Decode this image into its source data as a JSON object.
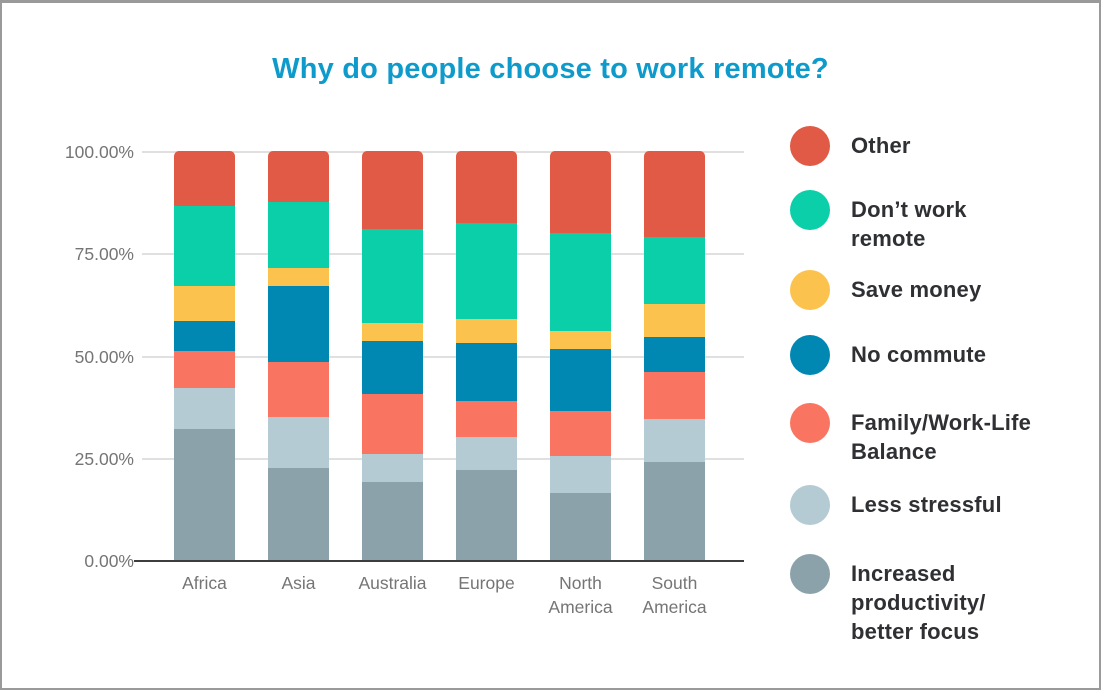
{
  "title": "Why do people choose to work remote?",
  "colors": {
    "title": "#0e9bcb",
    "axis_text": "#757575",
    "legend_text": "#2f3033",
    "gridline": "#e0e0e0",
    "baseline": "#3d3d3d",
    "background": "#ffffff",
    "border": "#9a9a9a",
    "other": "#e05a45",
    "dont_work_remote": "#0bcfa9",
    "save_money": "#fbc34d",
    "no_commute": "#0087b2",
    "family_work_life_balance": "#fa7462",
    "less_stressful": "#b4cbd3",
    "increased_productivity": "#8ca2ab"
  },
  "chart_data": {
    "type": "bar",
    "stacked": true,
    "title": "Why do people choose to work remote?",
    "xlabel": "",
    "ylabel": "",
    "ylim": [
      0,
      100
    ],
    "grid": true,
    "legend_position": "right",
    "categories": [
      "Africa",
      "Asia",
      "Australia",
      "Europe",
      "North America",
      "South America"
    ],
    "category_label_lines": [
      [
        "Africa"
      ],
      [
        "Asia"
      ],
      [
        "Australia"
      ],
      [
        "Europe"
      ],
      [
        "North",
        "America"
      ],
      [
        "South",
        "America"
      ]
    ],
    "yticks": [
      {
        "label": "0.00%",
        "value": 0
      },
      {
        "label": "25.00%",
        "value": 25
      },
      {
        "label": "50.00%",
        "value": 50
      },
      {
        "label": "75.00%",
        "value": 75
      },
      {
        "label": "100.00%",
        "value": 100
      }
    ],
    "series": [
      {
        "name": "Increased productivity/better focus",
        "color": "#8ca2ab",
        "values": [
          32,
          22.5,
          19,
          22,
          16.5,
          24
        ]
      },
      {
        "name": "Less stressful",
        "color": "#b4cbd3",
        "values": [
          10,
          12.5,
          7,
          8,
          9,
          10.5
        ]
      },
      {
        "name": "Family/Work-Life Balance",
        "color": "#fa7462",
        "values": [
          9,
          13.5,
          14.5,
          9,
          11,
          11.5
        ]
      },
      {
        "name": "No commute",
        "color": "#0087b2",
        "values": [
          7.5,
          18.5,
          13,
          14,
          15,
          8.5
        ]
      },
      {
        "name": "Save money",
        "color": "#fbc34d",
        "values": [
          8.5,
          4.5,
          4.5,
          6,
          4.5,
          8
        ]
      },
      {
        "name": "Don’t work remote",
        "color": "#0bcfa9",
        "values": [
          19.5,
          16,
          23,
          23.5,
          24,
          16.5
        ]
      },
      {
        "name": "Other",
        "color": "#e05a45",
        "values": [
          13.5,
          12.5,
          19,
          17.5,
          20,
          21
        ]
      }
    ]
  },
  "legend": {
    "items": [
      {
        "label": "Other",
        "lines": [
          "Other"
        ],
        "color": "#e05a45"
      },
      {
        "label": "Don’t work remote",
        "lines": [
          "Don’t work",
          "remote"
        ],
        "color": "#0bcfa9"
      },
      {
        "label": "Save money",
        "lines": [
          "Save money"
        ],
        "color": "#fbc34d"
      },
      {
        "label": "No commute",
        "lines": [
          "No commute"
        ],
        "color": "#0087b2"
      },
      {
        "label": "Family/Work-Life Balance",
        "lines": [
          "Family/Work-Life",
          "Balance"
        ],
        "color": "#fa7462"
      },
      {
        "label": "Less stressful",
        "lines": [
          "Less stressful"
        ],
        "color": "#b4cbd3"
      },
      {
        "label": "Increased productivity/better focus",
        "lines": [
          "Increased",
          "productivity/",
          "better focus"
        ],
        "color": "#8ca2ab"
      }
    ]
  }
}
